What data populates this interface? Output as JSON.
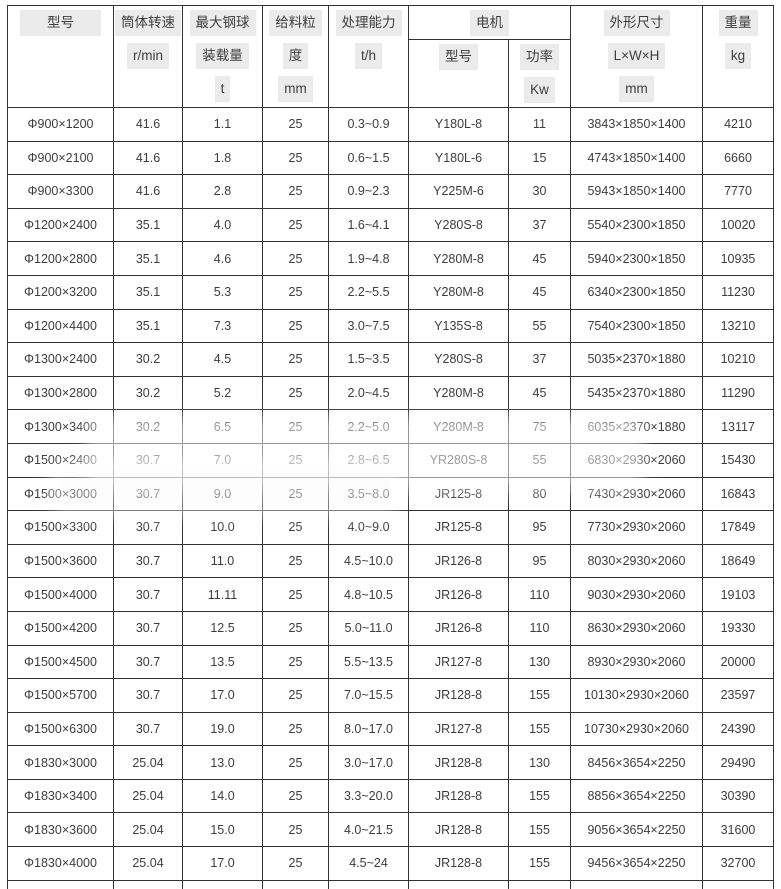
{
  "table": {
    "header": {
      "model": "型号",
      "speed_l1": "筒体转速",
      "speed_l2": "r/min",
      "ball_l1": "最大钢球",
      "ball_l2": "装载量",
      "ball_l3": "t",
      "feed_l1": "给料粒",
      "feed_l2": "度",
      "feed_l3": "mm",
      "capacity_l1": "处理能力",
      "capacity_l2": "t/h",
      "motor_group": "电机",
      "motor_model": "型号",
      "power_l1": "功率",
      "power_l2": "Kw",
      "dims_l1": "外形尺寸",
      "dims_l2": "L×W×H",
      "dims_l3": "mm",
      "weight_l1": "重量",
      "weight_l2": "kg"
    },
    "columns_semantic": [
      "model",
      "cylinder_speed_rpm",
      "max_ball_load_t",
      "feed_size_mm",
      "capacity_tph",
      "motor_model",
      "motor_power_kw",
      "dimensions_mm",
      "weight_kg"
    ],
    "rows": [
      [
        "Φ900×1200",
        "41.6",
        "1.1",
        "25",
        "0.3~0.9",
        "Y180L-8",
        "11",
        "3843×1850×1400",
        "4210"
      ],
      [
        "Φ900×2100",
        "41.6",
        "1.8",
        "25",
        "0.6~1.5",
        "Y180L-6",
        "15",
        "4743×1850×1400",
        "6660"
      ],
      [
        "Φ900×3300",
        "41.6",
        "2.8",
        "25",
        "0.9~2.3",
        "Y225M-6",
        "30",
        "5943×1850×1400",
        "7770"
      ],
      [
        "Φ1200×2400",
        "35.1",
        "4.0",
        "25",
        "1.6~4.1",
        "Y280S-8",
        "37",
        "5540×2300×1850",
        "10020"
      ],
      [
        "Φ1200×2800",
        "35.1",
        "4.6",
        "25",
        "1.9~4.8",
        "Y280M-8",
        "45",
        "5940×2300×1850",
        "10935"
      ],
      [
        "Φ1200×3200",
        "35.1",
        "5.3",
        "25",
        "2.2~5.5",
        "Y280M-8",
        "45",
        "6340×2300×1850",
        "11230"
      ],
      [
        "Φ1200×4400",
        "35.1",
        "7.3",
        "25",
        "3.0~7.5",
        "Y135S-8",
        "55",
        "7540×2300×1850",
        "13210"
      ],
      [
        "Φ1300×2400",
        "30.2",
        "4.5",
        "25",
        "1.5~3.5",
        "Y280S-8",
        "37",
        "5035×2370×1880",
        "10210"
      ],
      [
        "Φ1300×2800",
        "30.2",
        "5.2",
        "25",
        "2.0~4.5",
        "Y280M-8",
        "45",
        "5435×2370×1880",
        "11290"
      ],
      [
        "Φ1300×3400",
        "30.2",
        "6.5",
        "25",
        "2.2~5.0",
        "Y280M-8",
        "75",
        "6035×2370×1880",
        "13117"
      ],
      [
        "Φ1500×2400",
        "30.7",
        "7.0",
        "25",
        "2.8~6.5",
        "YR280S-8",
        "55",
        "6830×2930×2060",
        "15430"
      ],
      [
        "Φ1500×3000",
        "30.7",
        "9.0",
        "25",
        "3.5~8.0",
        "JR125-8",
        "80",
        "7430×2930×2060",
        "16843"
      ],
      [
        "Φ1500×3300",
        "30.7",
        "10.0",
        "25",
        "4.0~9.0",
        "JR125-8",
        "95",
        "7730×2930×2060",
        "17849"
      ],
      [
        "Φ1500×3600",
        "30.7",
        "11.0",
        "25",
        "4.5~10.0",
        "JR126-8",
        "95",
        "8030×2930×2060",
        "18649"
      ],
      [
        "Φ1500×4000",
        "30.7",
        "11.11",
        "25",
        "4.8~10.5",
        "JR126-8",
        "110",
        "9030×2930×2060",
        "19103"
      ],
      [
        "Φ1500×4200",
        "30.7",
        "12.5",
        "25",
        "5.0~11.0",
        "JR126-8",
        "110",
        "8630×2930×2060",
        "19330"
      ],
      [
        "Φ1500×4500",
        "30.7",
        "13.5",
        "25",
        "5.5~13.5",
        "JR127-8",
        "130",
        "8930×2930×2060",
        "20000"
      ],
      [
        "Φ1500×5700",
        "30.7",
        "17.0",
        "25",
        "7.0~15.5",
        "JR128-8",
        "155",
        "10130×2930×2060",
        "23597"
      ],
      [
        "Φ1500×6300",
        "30.7",
        "19.0",
        "25",
        "8.0~17.0",
        "JR127-8",
        "155",
        "10730×2930×2060",
        "24390"
      ],
      [
        "Φ1830×3000",
        "25.04",
        "13.0",
        "25",
        "3.0~17.0",
        "JR128-8",
        "130",
        "8456×3654×2250",
        "29490"
      ],
      [
        "Φ1830×3400",
        "25.04",
        "14.0",
        "25",
        "3.3~20.0",
        "JR128-8",
        "155",
        "8856×3654×2250",
        "30390"
      ],
      [
        "Φ1830×3600",
        "25.04",
        "15.0",
        "25",
        "4.0~21.5",
        "JR128-8",
        "155",
        "9056×3654×2250",
        "31600"
      ],
      [
        "Φ1830×4000",
        "25.04",
        "17.0",
        "25",
        "4.5~24",
        "JR128-8",
        "155",
        "9456×3654×2250",
        "32700"
      ]
    ]
  },
  "colors": {
    "border": "#333333",
    "header_highlight": "#ebebeb",
    "text": "#3d3d3d",
    "background": "#ffffff"
  }
}
